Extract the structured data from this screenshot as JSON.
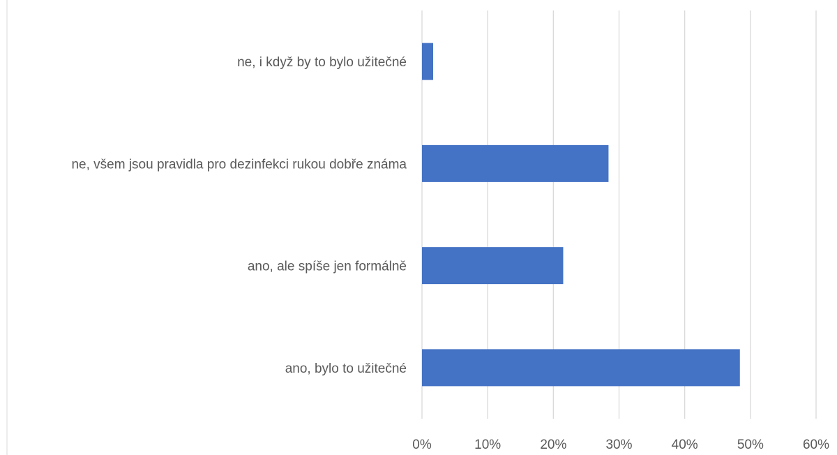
{
  "chart_data": {
    "type": "bar",
    "orientation": "horizontal",
    "title": "",
    "xlabel": "",
    "ylabel": "",
    "categories": [
      "ne, i když by to bylo užitečné",
      "ne, všem jsou pravidla pro dezinfekci rukou dobře známa",
      "ano, ale spíše jen formálně",
      "ano, bylo to užitečné"
    ],
    "values": [
      1.7,
      28.4,
      21.5,
      48.4
    ],
    "value_unit": "%",
    "xlim": [
      0,
      60
    ],
    "x_ticks": [
      0,
      10,
      20,
      30,
      40,
      50,
      60
    ],
    "x_tick_labels": [
      "0%",
      "10%",
      "20%",
      "30%",
      "40%",
      "50%",
      "60%"
    ],
    "grid": "vertical",
    "legend": "none",
    "bar_color": "#4472c4"
  }
}
